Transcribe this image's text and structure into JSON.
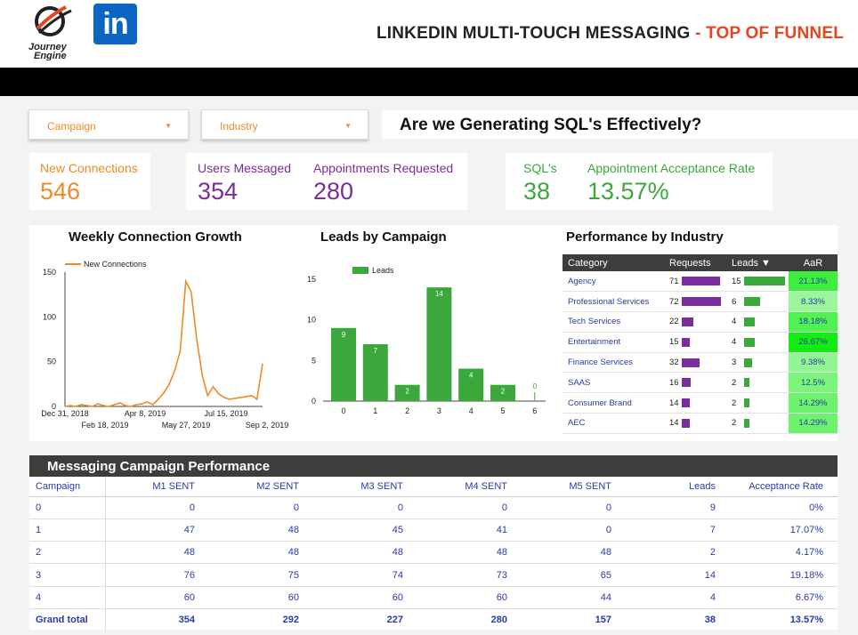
{
  "header": {
    "logo_text": "Journey Engine",
    "linkedin_text": "in",
    "title": "LINKEDIN MULTI-TOUCH MESSAGING",
    "title_accent": "- TOP OF FUNNEL"
  },
  "filters": {
    "campaign": "Campaign",
    "industry": "Industry"
  },
  "question": "Are we Generating SQL's Effectively?",
  "kpis": {
    "new_connections": {
      "label": "New Connections",
      "value": "546"
    },
    "users_messaged": {
      "label": "Users Messaged",
      "value": "354"
    },
    "appointments_requested": {
      "label": "Appointments Requested",
      "value": "280"
    },
    "sqls": {
      "label": "SQL's",
      "value": "38"
    },
    "acceptance_rate": {
      "label": "Appointment Acceptance Rate",
      "value": "13.57%"
    }
  },
  "colors": {
    "orange": "#f08a24",
    "purple": "#7b2d9e",
    "green": "#3aa83a",
    "navy": "#2a3aa8",
    "red": "#e8441e"
  },
  "chart_data": [
    {
      "type": "line",
      "title": "Weekly Connection Growth",
      "legend": "New Connections",
      "y_ticks": [
        "0",
        "50",
        "100",
        "150"
      ],
      "ylim": [
        0,
        150
      ],
      "x_ticks_top": [
        "Dec 31, 2018",
        "Apr 8, 2019",
        "Jul 15, 2019"
      ],
      "x_ticks_bottom": [
        "Feb 18, 2019",
        "May 27, 2019",
        "Sep 2, 2019"
      ],
      "values": [
        0,
        1,
        0,
        2,
        1,
        0,
        3,
        1,
        0,
        2,
        4,
        1,
        0,
        2,
        3,
        5,
        2,
        8,
        15,
        25,
        40,
        62,
        140,
        128,
        75,
        35,
        12,
        22,
        14,
        10,
        8,
        9,
        10,
        11,
        12,
        8,
        48
      ]
    },
    {
      "type": "bar",
      "title": "Leads by Campaign",
      "legend": "Leads",
      "categories": [
        "0",
        "1",
        "2",
        "3",
        "4",
        "5",
        "6"
      ],
      "values": [
        9,
        7,
        2,
        14,
        4,
        2,
        0
      ],
      "y_ticks": [
        "0",
        "5",
        "10",
        "15"
      ],
      "ylim": [
        0,
        15
      ]
    }
  ],
  "industry": {
    "title": "Performance by Industry",
    "headers": {
      "category": "Category",
      "requests": "Requests",
      "leads": "Leads ▼",
      "aar": "AaR"
    },
    "rows": [
      {
        "category": "Agency",
        "requests": 71,
        "leads": 15,
        "aar": "21.13%",
        "aar_val": 21.13
      },
      {
        "category": "Professional Services",
        "requests": 72,
        "leads": 6,
        "aar": "8.33%",
        "aar_val": 8.33
      },
      {
        "category": "Tech Services",
        "requests": 22,
        "leads": 4,
        "aar": "18.18%",
        "aar_val": 18.18
      },
      {
        "category": "Entertainment",
        "requests": 15,
        "leads": 4,
        "aar": "26.67%",
        "aar_val": 26.67
      },
      {
        "category": "Finance Services",
        "requests": 32,
        "leads": 3,
        "aar": "9.38%",
        "aar_val": 9.38
      },
      {
        "category": "SAAS",
        "requests": 16,
        "leads": 2,
        "aar": "12.5%",
        "aar_val": 12.5
      },
      {
        "category": "Consumer Brand",
        "requests": 14,
        "leads": 2,
        "aar": "14.29%",
        "aar_val": 14.29
      },
      {
        "category": "AEC",
        "requests": 14,
        "leads": 2,
        "aar": "14.29%",
        "aar_val": 14.29
      }
    ]
  },
  "messaging": {
    "title": "Messaging Campaign Performance",
    "headers": [
      "Campaign",
      "M1 SENT",
      "M2 SENT",
      "M3 SENT",
      "M4 SENT",
      "M5 SENT",
      "Leads",
      "Acceptance Rate"
    ],
    "rows": [
      [
        "0",
        "0",
        "0",
        "0",
        "0",
        "0",
        "9",
        "0%"
      ],
      [
        "1",
        "47",
        "48",
        "45",
        "41",
        "0",
        "7",
        "17.07%"
      ],
      [
        "2",
        "48",
        "48",
        "48",
        "48",
        "48",
        "2",
        "4.17%"
      ],
      [
        "3",
        "76",
        "75",
        "74",
        "73",
        "65",
        "14",
        "19.18%"
      ],
      [
        "4",
        "60",
        "60",
        "60",
        "60",
        "44",
        "4",
        "6.67%"
      ]
    ],
    "total": [
      "Grand total",
      "354",
      "292",
      "227",
      "280",
      "157",
      "38",
      "13.57%"
    ]
  }
}
